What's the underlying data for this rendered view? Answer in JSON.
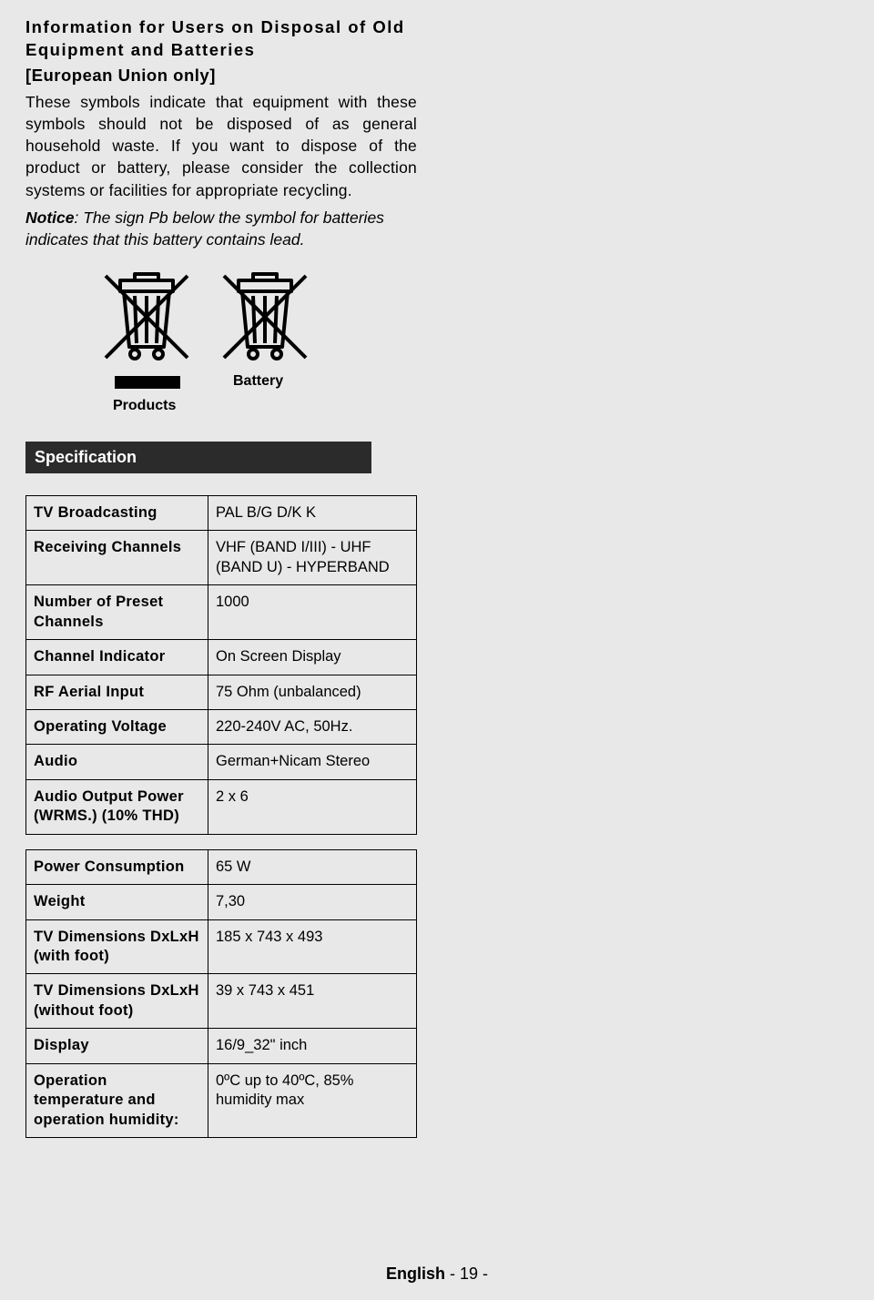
{
  "heading": "Information for Users on Disposal of Old Equipment and Batteries",
  "subheading": "[European Union only]",
  "body": "These symbols indicate that equipment with these symbols should not be disposed of as general household waste. If you want to dispose of the product or battery, please consider the collection systems or facilities for appropriate recycling.",
  "notice_label": "Notice",
  "notice_text": ": The sign Pb below the symbol for batteries indicates that this battery contains lead.",
  "products_label": "Products",
  "battery_label": "Battery",
  "spec_header": "Specification",
  "spec_group1": [
    {
      "k": "TV Broadcasting",
      "v": "PAL B/G D/K K"
    },
    {
      "k": "Receiving Channels",
      "v": "VHF (BAND I/III) - UHF (BAND U) - HYPERBAND"
    },
    {
      "k": "Number of Preset Channels",
      "v": "1000"
    },
    {
      "k": "Channel Indicator",
      "v": "On Screen Display"
    },
    {
      "k": "RF Aerial Input",
      "v": "75 Ohm (unbalanced)"
    },
    {
      "k": "Operating Voltage",
      "v": "220-240V AC, 50Hz."
    },
    {
      "k": "Audio",
      "v": "German+Nicam Stereo"
    },
    {
      "k": "Audio Output Power (WRMS.) (10% THD)",
      "v": "2 x 6"
    }
  ],
  "spec_group2": [
    {
      "k": "Power Consumption",
      "v": "65 W"
    },
    {
      "k": "Weight",
      "v": "7,30"
    },
    {
      "k": "TV Dimensions DxLxH (with foot)",
      "v": "185 x 743 x 493"
    },
    {
      "k": "TV Dimensions DxLxH (without foot)",
      "v": "39 x 743 x 451"
    },
    {
      "k": "Display",
      "v": "16/9_32\" inch"
    },
    {
      "k": "Operation temperature and operation humidity:",
      "v": "0ºC up to 40ºC, 85% humidity max"
    }
  ],
  "footer_lang": "English",
  "footer_page": "  - 19 -",
  "colors": {
    "page_bg": "#e8e8e8",
    "text": "#000000",
    "header_bg": "#2b2b2b",
    "header_fg": "#ffffff",
    "border": "#000000"
  },
  "icon_bin": {
    "width": 110,
    "height": 110,
    "stroke": "#000000",
    "stroke_width": 4
  }
}
